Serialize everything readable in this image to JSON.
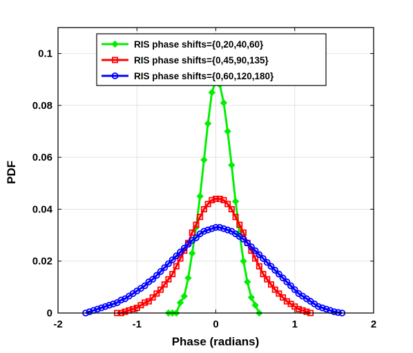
{
  "chart_data": {
    "type": "line",
    "title": "",
    "xlabel": "Phase (radians)",
    "ylabel": "PDF",
    "xlim": [
      -2,
      2
    ],
    "ylim": [
      0,
      0.11
    ],
    "xticks": [
      "-2",
      "-1",
      "0",
      "1",
      "2"
    ],
    "yticks": [
      "0",
      "0.02",
      "0.04",
      "0.06",
      "0.08",
      "0.1"
    ],
    "grid": true,
    "legend_position": "top-center",
    "series": [
      {
        "name": "RIS phase shifts={0,20,40,60}",
        "color": "#00ee00",
        "marker": "diamond",
        "mu": 0.0,
        "sigma": 0.16,
        "x": [
          -0.6,
          -0.55,
          -0.5,
          -0.45,
          -0.4,
          -0.35,
          -0.3,
          -0.25,
          -0.2,
          -0.15,
          -0.1,
          -0.05,
          0.0,
          0.05,
          0.1,
          0.15,
          0.2,
          0.25,
          0.3,
          0.35,
          0.4,
          0.45,
          0.5,
          0.55
        ],
        "y": [
          0.0,
          0.0,
          0.0,
          0.004,
          0.0065,
          0.0135,
          0.023,
          0.033,
          0.045,
          0.059,
          0.073,
          0.085,
          0.0895,
          0.088,
          0.081,
          0.07,
          0.057,
          0.043,
          0.031,
          0.02,
          0.012,
          0.006,
          0.003,
          0.0
        ]
      },
      {
        "name": "RIS phase shifts={0,45,90,135}",
        "color": "#ff0000",
        "marker": "square",
        "mu": 0.0,
        "sigma": 0.32,
        "x": [
          -1.25,
          -1.2,
          -1.15,
          -1.1,
          -1.05,
          -1.0,
          -0.95,
          -0.9,
          -0.85,
          -0.8,
          -0.75,
          -0.7,
          -0.65,
          -0.6,
          -0.55,
          -0.5,
          -0.45,
          -0.4,
          -0.35,
          -0.3,
          -0.25,
          -0.2,
          -0.15,
          -0.1,
          -0.05,
          0.0,
          0.05,
          0.1,
          0.15,
          0.2,
          0.25,
          0.3,
          0.35,
          0.4,
          0.45,
          0.5,
          0.55,
          0.6,
          0.65,
          0.7,
          0.75,
          0.8,
          0.85,
          0.9,
          0.95,
          1.0,
          1.05,
          1.1,
          1.15,
          1.2
        ],
        "y": [
          0.0,
          0.0,
          0.0005,
          0.001,
          0.0015,
          0.002,
          0.003,
          0.004,
          0.0045,
          0.006,
          0.0075,
          0.009,
          0.011,
          0.013,
          0.015,
          0.018,
          0.021,
          0.024,
          0.027,
          0.031,
          0.034,
          0.037,
          0.04,
          0.042,
          0.0435,
          0.044,
          0.044,
          0.0435,
          0.042,
          0.04,
          0.037,
          0.034,
          0.031,
          0.027,
          0.024,
          0.021,
          0.018,
          0.015,
          0.013,
          0.011,
          0.009,
          0.0075,
          0.006,
          0.0045,
          0.0035,
          0.0025,
          0.0015,
          0.001,
          0.0005,
          0.0
        ]
      },
      {
        "name": "RIS phase shifts={0,60,120,180}",
        "color": "#0000ff",
        "marker": "circle",
        "mu": 0.0,
        "sigma": 0.43,
        "x": [
          -1.65,
          -1.6,
          -1.55,
          -1.5,
          -1.45,
          -1.4,
          -1.35,
          -1.3,
          -1.25,
          -1.2,
          -1.15,
          -1.1,
          -1.05,
          -1.0,
          -0.95,
          -0.9,
          -0.85,
          -0.8,
          -0.75,
          -0.7,
          -0.65,
          -0.6,
          -0.55,
          -0.5,
          -0.45,
          -0.4,
          -0.35,
          -0.3,
          -0.25,
          -0.2,
          -0.15,
          -0.1,
          -0.05,
          0.0,
          0.05,
          0.1,
          0.15,
          0.2,
          0.25,
          0.3,
          0.35,
          0.4,
          0.45,
          0.5,
          0.55,
          0.6,
          0.65,
          0.7,
          0.75,
          0.8,
          0.85,
          0.9,
          0.95,
          1.0,
          1.05,
          1.1,
          1.15,
          1.2,
          1.25,
          1.3,
          1.35,
          1.4,
          1.45,
          1.5,
          1.55,
          1.6
        ],
        "y": [
          0.0,
          0.0005,
          0.001,
          0.0015,
          0.002,
          0.0025,
          0.003,
          0.0035,
          0.004,
          0.005,
          0.0055,
          0.0065,
          0.0075,
          0.0085,
          0.0095,
          0.0105,
          0.012,
          0.013,
          0.0145,
          0.016,
          0.0175,
          0.019,
          0.0205,
          0.022,
          0.0235,
          0.025,
          0.0265,
          0.028,
          0.029,
          0.0305,
          0.0315,
          0.032,
          0.0325,
          0.033,
          0.033,
          0.0325,
          0.032,
          0.0315,
          0.0305,
          0.0295,
          0.0285,
          0.027,
          0.0255,
          0.024,
          0.0225,
          0.021,
          0.0195,
          0.018,
          0.0165,
          0.015,
          0.0135,
          0.012,
          0.0105,
          0.009,
          0.0075,
          0.0065,
          0.0055,
          0.0045,
          0.0035,
          0.0025,
          0.002,
          0.0015,
          0.001,
          0.0005,
          0.0002,
          0.0
        ]
      }
    ]
  }
}
